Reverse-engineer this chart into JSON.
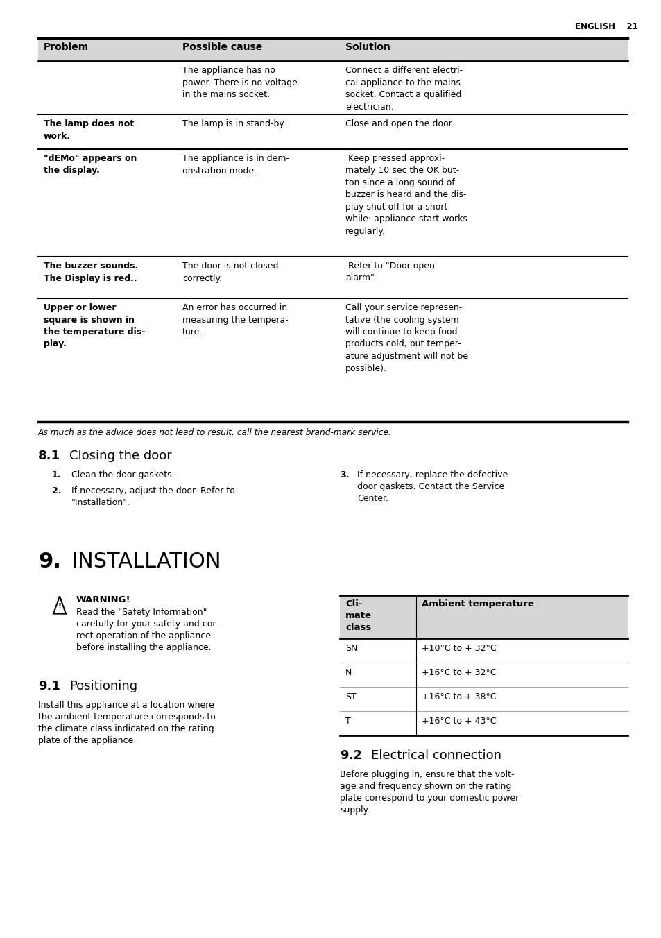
{
  "page_header": "ENGLISH    21",
  "table": {
    "col_headers": [
      "Problem",
      "Possible cause",
      "Solution"
    ],
    "rows": [
      {
        "problem": "",
        "cause": "The appliance has no\npower. There is no voltage\nin the mains socket.",
        "solution": "Connect a different electri-\ncal appliance to the mains\nsocket. Contact a qualified\nelectrician.",
        "problem_bold": false
      },
      {
        "problem": "The lamp does not\nwork.",
        "cause": "The lamp is in stand-by.",
        "solution": "Close and open the door.",
        "problem_bold": true
      },
      {
        "problem": "\"dEMo\" appears on\nthe display.",
        "cause": "The appliance is in dem-\nonstration mode.",
        "solution": " Keep pressed approxi-\nmately 10 sec the OK but-\nton since a long sound of\nbuzzer is heard and the dis-\nplay shut off for a short\nwhile: appliance start works\nregularly.",
        "problem_bold": true
      },
      {
        "problem": "The buzzer sounds.\nThe Display is red..",
        "cause": "The door is not closed\ncorrectly.",
        "solution": " Refer to \"Door open\nalarm\".",
        "problem_bold": true
      },
      {
        "problem": "Upper or lower\nsquare is shown in\nthe temperature dis-\nplay.",
        "cause": "An error has occurred in\nmeasuring the tempera-\nture.",
        "solution": "Call your service represen-\ntative (the cooling system\nwill continue to keep food\nproducts cold, but temper-\nature adjustment will not be\npossible).",
        "problem_bold": true
      }
    ],
    "footer": "As much as the advice does not lead to result, call the nearest brand-mark service."
  },
  "section_8_1": {
    "heading_num": "8.1",
    "heading_text": "Closing the door",
    "items": [
      "Clean the door gaskets.",
      "If necessary, adjust the door. Refer to\n\"Installation\"."
    ],
    "col2_num": "3.",
    "col2_text": "If necessary, replace the defective\ndoor gaskets. Contact the Service\nCenter."
  },
  "section_9": {
    "heading_num": "9.",
    "heading_text": "INSTALLATION"
  },
  "warning": {
    "title": "WARNING!",
    "text": "Read the \"Safety Information\"\ncarefully for your safety and cor-\nrect operation of the appliance\nbefore installing the appliance."
  },
  "section_9_1": {
    "heading_num": "9.1",
    "heading_text": "Positioning",
    "body": "Install this appliance at a location where\nthe ambient temperature corresponds to\nthe climate class indicated on the rating\nplate of the appliance:"
  },
  "climate_table": {
    "header": [
      "Cli-\nmate\nclass",
      "Ambient temperature"
    ],
    "rows": [
      [
        "SN",
        "+10°C to + 32°C"
      ],
      [
        "N",
        "+16°C to + 32°C"
      ],
      [
        "ST",
        "+16°C to + 38°C"
      ],
      [
        "T",
        "+16°C to + 43°C"
      ]
    ]
  },
  "section_9_2": {
    "heading_num": "9.2",
    "heading_text": "Electrical connection",
    "body": "Before plugging in, ensure that the volt-\nage and frequency shown on the rating\nplate correspond to your domestic power\nsupply."
  },
  "bg_color": "#ffffff",
  "text_color": "#000000"
}
